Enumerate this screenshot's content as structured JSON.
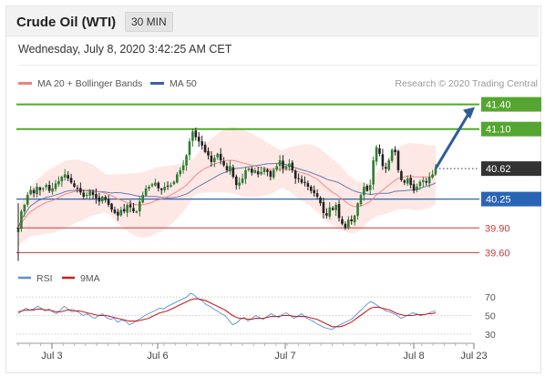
{
  "header": {
    "title": "Crude Oil (WTI)",
    "timeframe": "30 MIN"
  },
  "date_line": "Wednesday, July 8, 2020 3:42:25 AM CET",
  "legend": {
    "ma20_label": "MA 20 + Bollinger Bands",
    "ma50_label": "MA 50",
    "credit": "Research © 2020 Trading Central"
  },
  "rsi_legend": {
    "rsi_label": "RSI",
    "ma9_label": "9MA"
  },
  "colors": {
    "up": "#2e7d32",
    "down": "#222222",
    "ma20": "#f08080",
    "ma50": "#3f5fa8",
    "band": "#fde0dc",
    "resistance": "#55a630",
    "support": "#c43c3c",
    "pivot": "#2a64b6",
    "arrow": "#2f5b9a",
    "rsi": "#5b8fd6",
    "ma9": "#cc1f1f"
  },
  "chart_data": [
    {
      "type": "candlestick",
      "instrument": "Crude Oil (WTI)",
      "timeframe": "30 MIN",
      "x_ticks": [
        "Jul 3",
        "Jul 6",
        "Jul 7",
        "Jul 8",
        "Jul 23"
      ],
      "y_range": [
        39.45,
        41.55
      ],
      "current_price": 40.62,
      "levels": [
        {
          "value": 41.4,
          "label": "41.40",
          "kind": "resistance"
        },
        {
          "value": 41.1,
          "label": "41.10",
          "kind": "resistance"
        },
        {
          "value": 40.62,
          "label": "40.62",
          "kind": "last"
        },
        {
          "value": 40.25,
          "label": "40.25",
          "kind": "pivot"
        },
        {
          "value": 39.9,
          "label": "39.90",
          "kind": "support"
        },
        {
          "value": 39.6,
          "label": "39.60",
          "kind": "support"
        }
      ],
      "forecast_arrow": {
        "from": 40.62,
        "to": 41.4
      },
      "closes": [
        39.9,
        40.1,
        40.18,
        40.3,
        40.36,
        40.32,
        40.4,
        40.36,
        40.38,
        40.42,
        40.35,
        40.38,
        40.44,
        40.47,
        40.52,
        40.55,
        40.5,
        40.45,
        40.4,
        40.38,
        40.33,
        40.28,
        40.3,
        40.35,
        40.3,
        40.26,
        40.22,
        40.28,
        40.24,
        40.18,
        40.12,
        40.08,
        40.05,
        40.12,
        40.1,
        40.18,
        40.15,
        40.1,
        40.1,
        40.22,
        40.3,
        40.38,
        40.4,
        40.43,
        40.45,
        40.38,
        40.36,
        40.4,
        40.41,
        40.42,
        40.46,
        40.55,
        40.6,
        40.66,
        40.78,
        40.95,
        41.07,
        41.0,
        40.95,
        40.9,
        40.82,
        40.78,
        40.7,
        40.75,
        40.8,
        40.72,
        40.66,
        40.6,
        40.65,
        40.52,
        40.42,
        40.45,
        40.5,
        40.6,
        40.62,
        40.57,
        40.6,
        40.55,
        40.58,
        40.62,
        40.58,
        40.52,
        40.6,
        40.65,
        40.72,
        40.62,
        40.65,
        40.68,
        40.6,
        40.5,
        40.5,
        40.45,
        40.45,
        40.4,
        40.35,
        40.32,
        40.28,
        40.2,
        40.08,
        40.05,
        40.15,
        40.12,
        40.18,
        40.02,
        39.95,
        39.9,
        40.0,
        39.98,
        40.05,
        40.2,
        40.3,
        40.4,
        40.35,
        40.42,
        40.72,
        40.88,
        40.8,
        40.65,
        40.62,
        40.72,
        40.85,
        40.82,
        40.6,
        40.48,
        40.45,
        40.5,
        40.42,
        40.35,
        40.4,
        40.46,
        40.48,
        40.45,
        40.52,
        40.55,
        40.62
      ],
      "ma20": [
        39.9,
        39.96,
        40.01,
        40.06,
        40.1,
        40.12,
        40.15,
        40.17,
        40.19,
        40.21,
        40.22,
        40.23,
        40.25,
        40.27,
        40.29,
        40.31,
        40.32,
        40.33,
        40.34,
        40.35,
        40.35,
        40.35,
        40.36,
        40.36,
        40.36,
        40.35,
        40.34,
        40.33,
        40.32,
        40.31,
        40.29,
        40.27,
        40.25,
        40.24,
        40.22,
        40.21,
        40.2,
        40.19,
        40.18,
        40.18,
        40.18,
        40.19,
        40.2,
        40.21,
        40.23,
        40.24,
        40.25,
        40.27,
        40.28,
        40.3,
        40.32,
        40.34,
        40.37,
        40.39,
        40.42,
        40.46,
        40.5,
        40.54,
        40.57,
        40.6,
        40.62,
        40.64,
        40.66,
        40.67,
        40.69,
        40.7,
        40.71,
        40.72,
        40.72,
        40.72,
        40.71,
        40.7,
        40.69,
        40.68,
        40.67,
        40.66,
        40.65,
        40.64,
        40.63,
        40.63,
        40.62,
        40.61,
        40.61,
        40.61,
        40.61,
        40.61,
        40.61,
        40.61,
        40.6,
        40.59,
        40.58,
        40.57,
        40.56,
        40.55,
        40.53,
        40.51,
        40.49,
        40.46,
        40.42,
        40.39,
        40.36,
        40.33,
        40.31,
        40.28,
        40.25,
        40.22,
        40.19,
        40.17,
        40.16,
        40.16,
        40.17,
        40.18,
        40.2,
        40.22,
        40.26,
        40.3,
        40.33,
        40.36,
        40.39,
        40.42,
        40.45,
        40.48,
        40.5,
        40.51,
        40.52,
        40.53,
        40.53,
        40.52,
        40.52,
        40.52,
        40.52,
        40.52,
        40.52,
        40.53,
        40.54
      ],
      "bollinger_width": 0.3
    },
    {
      "type": "line",
      "name": "RSI panel",
      "y_ticks": [
        30,
        50,
        70
      ],
      "y_range": [
        25,
        78
      ],
      "series": [
        {
          "name": "RSI",
          "values": [
            52,
            55,
            58,
            56,
            57,
            60,
            58,
            55,
            57,
            54,
            52,
            56,
            60,
            57,
            54,
            55,
            53,
            50,
            52,
            49,
            47,
            50,
            52,
            48,
            46,
            47,
            43,
            45,
            44,
            40,
            42,
            45,
            47,
            50,
            52,
            54,
            56,
            58,
            57,
            60,
            62,
            64,
            66,
            68,
            70,
            74,
            72,
            68,
            66,
            62,
            60,
            57,
            55,
            52,
            50,
            45,
            40,
            42,
            46,
            48,
            44,
            47,
            50,
            48,
            46,
            49,
            52,
            50,
            48,
            51,
            53,
            50,
            47,
            49,
            52,
            48,
            46,
            44,
            41,
            39,
            37,
            36,
            35,
            38,
            40,
            42,
            44,
            46,
            50,
            54,
            58,
            62,
            65,
            63,
            60,
            58,
            55,
            54,
            52,
            50,
            47,
            49,
            51,
            53,
            52,
            50,
            51,
            52,
            54,
            55
          ]
        },
        {
          "name": "9MA",
          "values": [
            54,
            55,
            56,
            56,
            56,
            57,
            57,
            56,
            56,
            55,
            54,
            54,
            55,
            56,
            56,
            55,
            55,
            54,
            53,
            52,
            51,
            50,
            50,
            50,
            49,
            48,
            47,
            46,
            45,
            44,
            44,
            44,
            45,
            46,
            47,
            49,
            51,
            53,
            54,
            55,
            57,
            59,
            61,
            63,
            65,
            67,
            68,
            68,
            67,
            66,
            64,
            62,
            60,
            58,
            56,
            53,
            50,
            48,
            47,
            47,
            46,
            46,
            47,
            47,
            47,
            48,
            49,
            49,
            49,
            50,
            50,
            50,
            49,
            49,
            49,
            49,
            48,
            47,
            46,
            44,
            42,
            40,
            38,
            38,
            38,
            39,
            41,
            43,
            46,
            49,
            52,
            55,
            58,
            59,
            59,
            58,
            57,
            56,
            54,
            52,
            51,
            50,
            50,
            50,
            51,
            51,
            51,
            52,
            52,
            53
          ]
        }
      ]
    }
  ]
}
